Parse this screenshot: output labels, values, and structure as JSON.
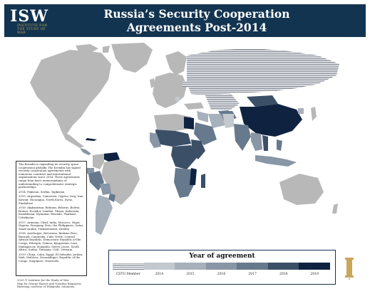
{
  "header": {
    "logo_text": "ISW",
    "logo_sub": "INSTITUTE FOR THE STUDY OF WAR",
    "title_line1": "Russia’s Security Cooperation",
    "title_line2": "Agreements Post-2014"
  },
  "intro": "The Kremlin is expanding its security space cooperation globally. The Kremlin has signed security cooperation agreements with numerous countries and international organizations since 2014. These agreements range from basic memorandums of understanding to comprehensive strategic partnerships.",
  "year_entries": [
    "2014: Pakistan, Serbia, Tajikistan",
    "2015: Argentina, Cameroon, Cyprus, Iraq, Iran, Kuwait, Nicaragua, North Korea, Syria, Zimbabwe",
    "2016: Afghanistan, Bahrain, Belarus, Bolivia, Brunei, Ecuador, Gambia, Ghana, Indonesia, Kazakhstan, Myanmar, Rwanda, Thailand, Uzbekistan",
    "2017: Armenia, Chad, India, Morocco, Niger, Nigeria, Paraguay, Peru, the Philippines, Qatar, Saudi Arabia, Turkmenistan, Zambia",
    "2018: Azerbaijan, Botswana, Burkina Faso, Burundi, Cambodia, Cabo Verde, Central African Republic, Democratic Republic of the Congo, Ethiopia, Guinea, Kyrgyzstan, Laos, Madagascar, Mongolia, Sierra Leone, South Africa, Sudan, Tanzania, UAE, Vietnam",
    "2019: China, Cuba, Egypt, El Salvador, Jordan, Mali, Moldova, Mozambique, Republic of the Congo, Singapore, Venezuela"
  ],
  "credits": [
    "2020 © Institute for the Study of War",
    "Map by George Barros and Nataliya Bugayova.",
    "Basemap courtesy of Wikipedia commons."
  ],
  "legend": {
    "title": "Year of agreement",
    "items": [
      {
        "label": "CSTO Member",
        "color": "#e9eaec",
        "hatched": true
      },
      {
        "label": "2014",
        "color": "#c4c9cf"
      },
      {
        "label": "2015",
        "color": "#a7b1bc"
      },
      {
        "label": "2016",
        "color": "#8896a5"
      },
      {
        "label": "2017",
        "color": "#67798c"
      },
      {
        "label": "2018",
        "color": "#3b4f67"
      },
      {
        "label": "2019",
        "color": "#0f2340"
      }
    ]
  },
  "colors": {
    "header_bg": "#123450",
    "gold": "#c9a65a",
    "land_default": "#b8b8b8",
    "ocean": "#ffffff"
  }
}
